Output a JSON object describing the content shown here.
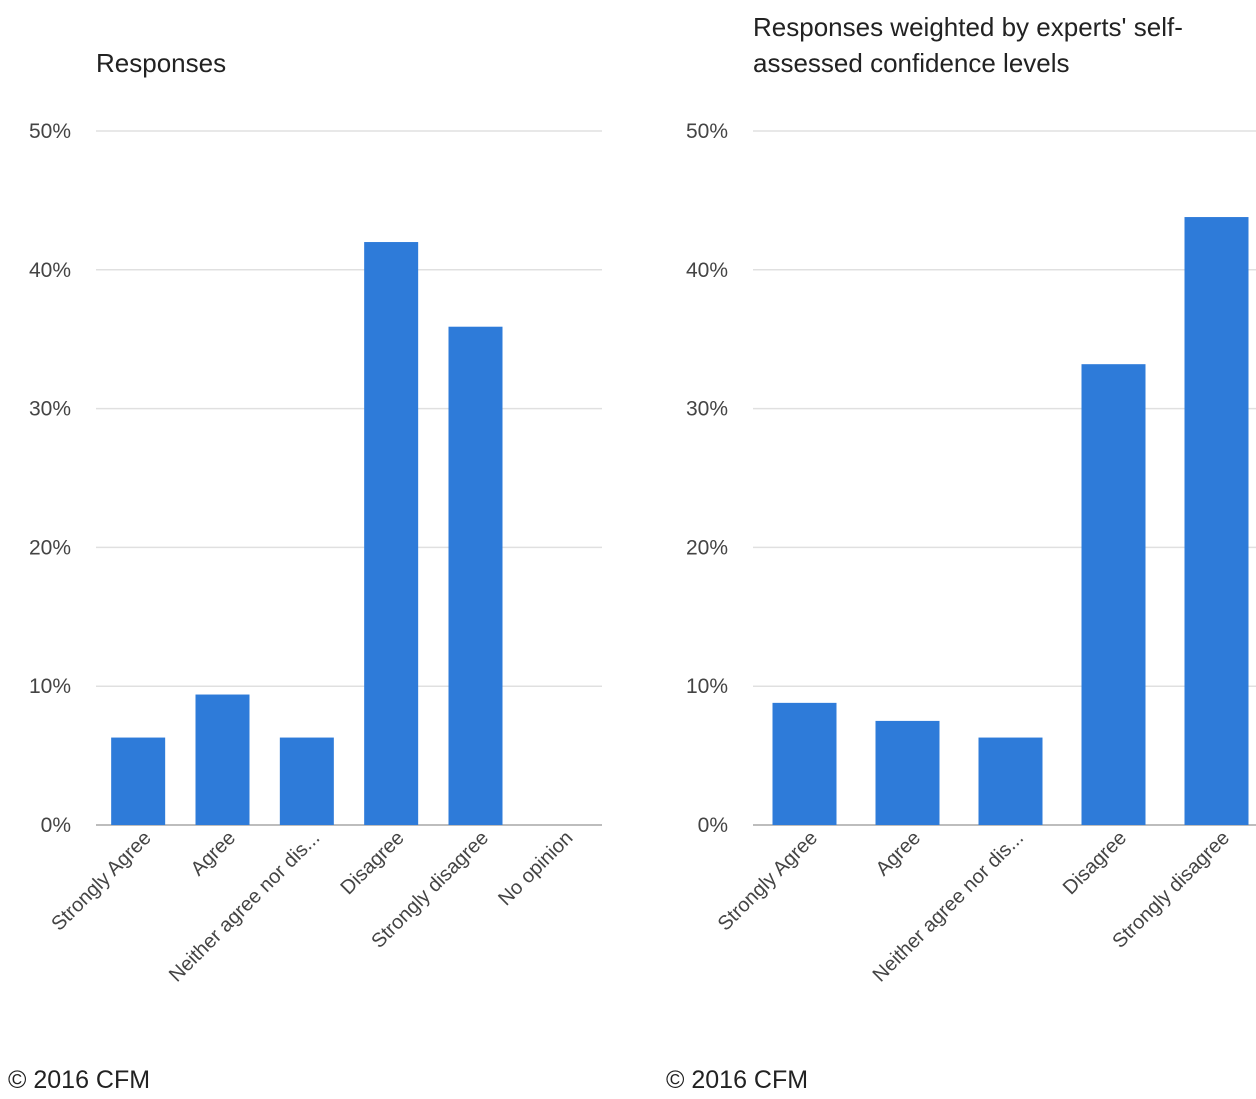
{
  "colors": {
    "bar": "#2e7bd9",
    "grid": "#e0e0e0",
    "axis": "#bdbdbd",
    "text": "#444444"
  },
  "chart_data": [
    {
      "type": "bar",
      "title": "Responses",
      "categories": [
        "Strongly Agree",
        "Agree",
        "Neither agree nor dis...",
        "Disagree",
        "Strongly disagree",
        "No opinion"
      ],
      "values": [
        6.3,
        9.4,
        6.3,
        42.0,
        35.9,
        0.0
      ],
      "ylim": [
        0,
        50
      ],
      "yticks": [
        "0%",
        "10%",
        "20%",
        "30%",
        "40%",
        "50%"
      ],
      "xlabel": "",
      "ylabel": "",
      "grid": true,
      "footer": "© 2016 CFM"
    },
    {
      "type": "bar",
      "title": "Responses weighted by experts' self-\nassessed confidence levels",
      "categories": [
        "Strongly Agree",
        "Agree",
        "Neither agree nor dis...",
        "Disagree",
        "Strongly disagree"
      ],
      "values": [
        8.8,
        7.5,
        6.3,
        33.2,
        43.8
      ],
      "ylim": [
        0,
        50
      ],
      "yticks": [
        "0%",
        "10%",
        "20%",
        "30%",
        "40%",
        "50%"
      ],
      "xlabel": "",
      "ylabel": "",
      "grid": true,
      "footer": "© 2016 CFM"
    }
  ]
}
